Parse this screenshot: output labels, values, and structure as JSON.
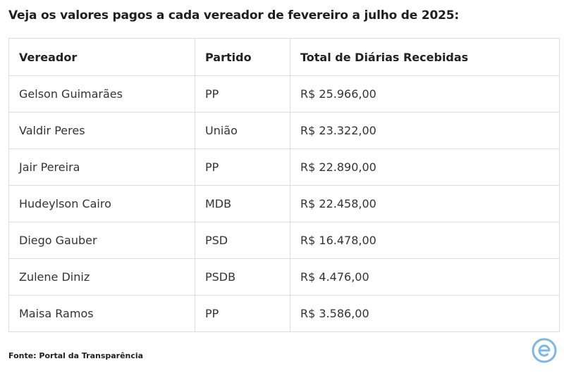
{
  "heading": "Veja os valores pagos a cada vereador de fevereiro a julho de 2025:",
  "table": {
    "headers": [
      "Vereador",
      "Partido",
      "Total de Diárias Recebidas"
    ],
    "rows": [
      [
        "Gelson Guimarães",
        "PP",
        "R$ 25.966,00"
      ],
      [
        "Valdir Peres",
        "União",
        "R$ 23.322,00"
      ],
      [
        "Jair Pereira",
        "PP",
        "R$ 22.890,00"
      ],
      [
        "Hudeylson Cairo",
        "MDB",
        "R$ 22.458,00"
      ],
      [
        "Diego Gauber",
        "PSD",
        "R$ 16.478,00"
      ],
      [
        "Zulene Diniz",
        "PSDB",
        "R$ 4.476,00"
      ],
      [
        "Maisa Ramos",
        "PP",
        "R$ 3.586,00"
      ]
    ]
  },
  "source": "Fonte: Portal da Transparência",
  "logo": {
    "icon": "e-logo-icon",
    "color": "#7fb6e8"
  }
}
